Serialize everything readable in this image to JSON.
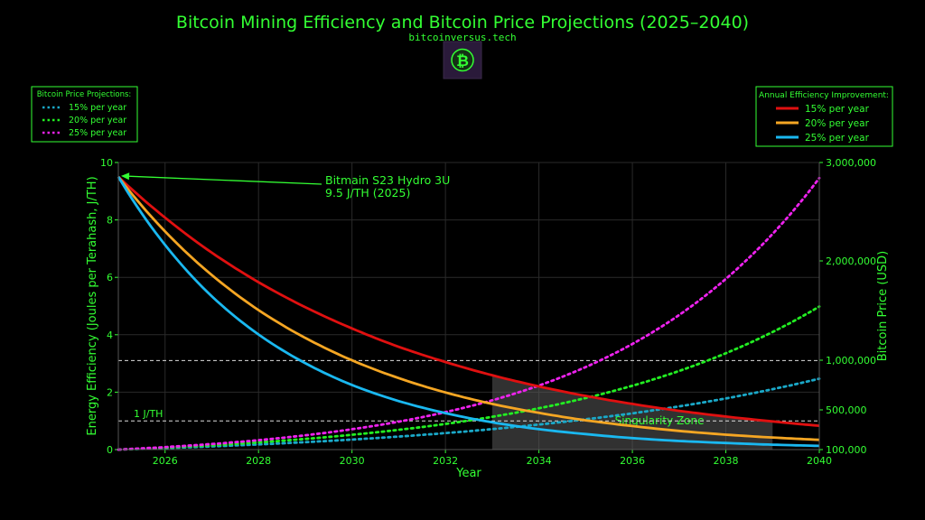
{
  "header": {
    "title": "Bitcoin Mining Efficiency and Bitcoin Price Projections (2025–2040)",
    "website": "bitcoinversus.tech",
    "logo_symbol": "₿",
    "logo_icon": "bitcoin-logo-icon"
  },
  "colors": {
    "text": "#33ff33",
    "background": "#000000",
    "eff15": "#e01010",
    "eff20": "#f5a623",
    "eff25": "#1ab8f0",
    "price15": "#1aa8c8",
    "price20": "#22ee22",
    "price25": "#ee22ee"
  },
  "chart_data": {
    "type": "line",
    "title": "Bitcoin Mining Efficiency and Bitcoin Price Projections (2025–2040)",
    "xlabel": "Year",
    "ylabel_left": "Energy Efficiency (Joules per Terahash, J/TH)",
    "ylabel_right": "Bitcoin Price (USD)",
    "xlim": [
      2025,
      2040
    ],
    "ylim_left": [
      0,
      10
    ],
    "ylim_right": [
      100000,
      3000000
    ],
    "x_ticks": [
      "2026",
      "2028",
      "2030",
      "2032",
      "2034",
      "2036",
      "2038",
      "2040"
    ],
    "x_tick_values": [
      2026,
      2028,
      2030,
      2032,
      2034,
      2036,
      2038,
      2040
    ],
    "left_ticks": [
      "0",
      "2",
      "4",
      "6",
      "8",
      "10"
    ],
    "left_tick_values": [
      0,
      2,
      4,
      6,
      8,
      10
    ],
    "right_ticks": [
      "100,000",
      "500,000",
      "1,000,000",
      "2,000,000",
      "3,000,000"
    ],
    "right_tick_values": [
      100000,
      500000,
      1000000,
      2000000,
      3000000
    ],
    "grid": true,
    "x": [
      2025,
      2026,
      2027,
      2028,
      2029,
      2030,
      2031,
      2032,
      2033,
      2034,
      2035,
      2036,
      2037,
      2038,
      2039,
      2040
    ],
    "efficiency_series": [
      {
        "name": "15% per year",
        "color": "#e01010",
        "values": [
          9.5,
          8.08,
          6.86,
          5.83,
          4.96,
          4.22,
          3.58,
          3.05,
          2.59,
          2.2,
          1.87,
          1.59,
          1.35,
          1.15,
          0.98,
          0.83
        ]
      },
      {
        "name": "20% per year",
        "color": "#f5a623",
        "values": [
          9.5,
          7.6,
          6.08,
          4.86,
          3.89,
          3.11,
          2.49,
          1.99,
          1.59,
          1.28,
          1.02,
          0.82,
          0.65,
          0.52,
          0.42,
          0.34
        ]
      },
      {
        "name": "25% per year",
        "color": "#1ab8f0",
        "values": [
          9.5,
          7.13,
          5.34,
          4.01,
          3.01,
          2.25,
          1.69,
          1.27,
          0.95,
          0.71,
          0.54,
          0.4,
          0.3,
          0.23,
          0.17,
          0.13
        ]
      }
    ],
    "price_series": [
      {
        "name": "15% per year",
        "color": "#1aa8c8",
        "values": [
          100000,
          115000,
          132000,
          152000,
          175000,
          201000,
          231000,
          266000,
          306000,
          352000,
          405000,
          465000,
          535000,
          615000,
          708000,
          814000
        ]
      },
      {
        "name": "20% per year",
        "color": "#22ee22",
        "values": [
          100000,
          120000,
          144000,
          173000,
          207000,
          249000,
          299000,
          358000,
          430000,
          516000,
          619000,
          743000,
          892000,
          1070000,
          1284000,
          1541000
        ]
      },
      {
        "name": "25% per year",
        "color": "#ee22ee",
        "values": [
          100000,
          125000,
          156000,
          195000,
          244000,
          305000,
          381000,
          477000,
          596000,
          745000,
          931000,
          1164000,
          1455000,
          1819000,
          2274000,
          2842000
        ]
      }
    ],
    "hlines": [
      {
        "y_left": 1,
        "label": "1 J/TH"
      },
      {
        "y_left": 3.1,
        "label": ""
      }
    ],
    "shaded_region": {
      "label": "Singularity Zone",
      "x_start": 2033,
      "x_end": 2039
    },
    "annotation": {
      "line1": "Bitmain S23 Hydro 3U",
      "line2": "9.5 J/TH (2025)",
      "point_x": 2025,
      "point_y": 9.5
    },
    "legend_price": {
      "title": "Bitcoin Price Projections:",
      "position": "top-left",
      "entries": [
        "15% per year",
        "20% per year",
        "25% per year"
      ]
    },
    "legend_efficiency": {
      "title": "Annual Efficiency Improvement:",
      "position": "top-right",
      "entries": [
        "15% per year",
        "20% per year",
        "25% per year"
      ]
    }
  }
}
